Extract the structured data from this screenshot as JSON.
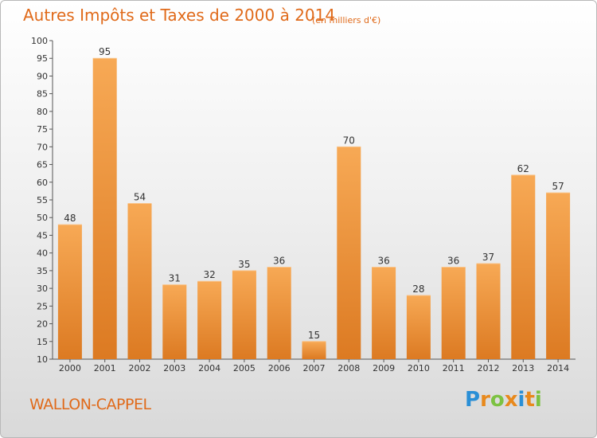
{
  "title": "Autres Impôts et Taxes de 2000 à 2014",
  "subtitle": "(en milliers d'€)",
  "commune": "WALLON-CAPPEL",
  "brand": {
    "letters": [
      "P",
      "r",
      "o",
      "x",
      "i",
      "t",
      "i"
    ],
    "colors": [
      "#2a8fd6",
      "#e8891c",
      "#7cc242",
      "#e8891c",
      "#2a8fd6",
      "#e8891c",
      "#7cc242"
    ]
  },
  "colors": {
    "bar_light": "#f7a955",
    "bar_dark": "#dc7a22",
    "title": "#e06a1a"
  },
  "chart_data": {
    "type": "bar",
    "categories": [
      "2000",
      "2001",
      "2002",
      "2003",
      "2004",
      "2005",
      "2006",
      "2007",
      "2008",
      "2009",
      "2010",
      "2011",
      "2012",
      "2013",
      "2014"
    ],
    "values": [
      48,
      95,
      54,
      31,
      32,
      35,
      36,
      15,
      70,
      36,
      28,
      36,
      37,
      62,
      57
    ],
    "ylim": [
      10,
      100
    ],
    "yticks": [
      10,
      15,
      20,
      25,
      30,
      35,
      40,
      45,
      50,
      55,
      60,
      65,
      70,
      75,
      80,
      85,
      90,
      95,
      100
    ],
    "grid": false,
    "legend": "none"
  }
}
